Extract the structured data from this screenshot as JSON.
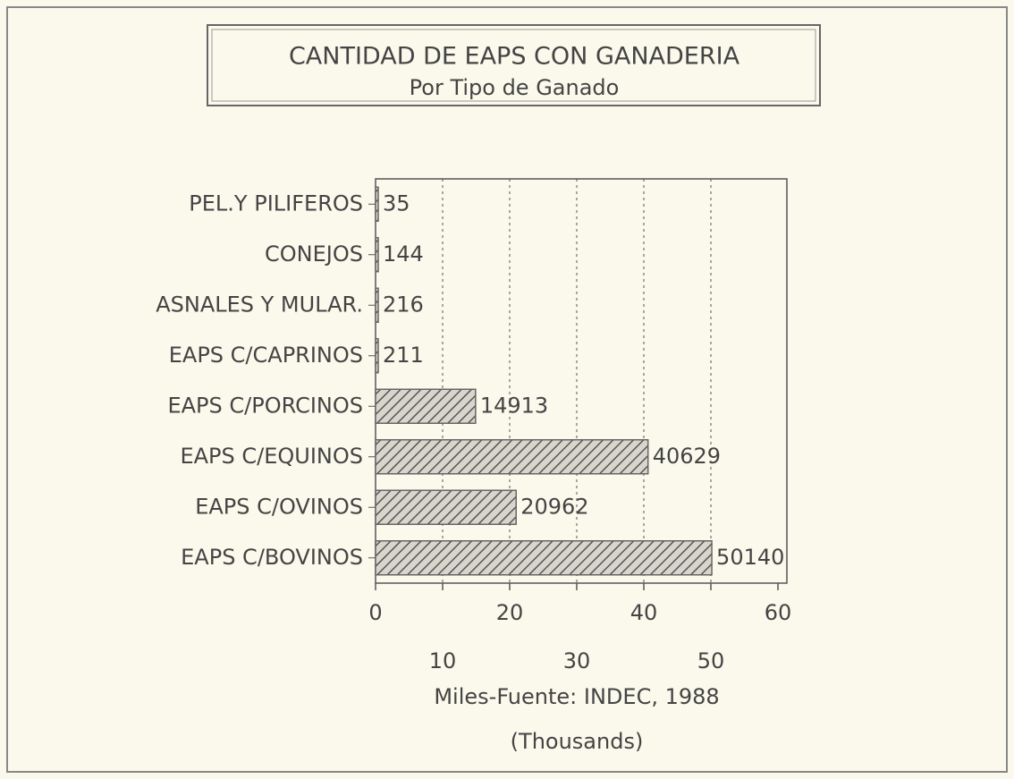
{
  "chart_data": {
    "type": "barh",
    "title": "CANTIDAD DE EAPS CON GANADERIA",
    "subtitle": "Por Tipo de Ganado",
    "xlabel": [
      "Miles-Fuente: INDEC, 1988",
      "(Thousands)"
    ],
    "categories": [
      "PEL.Y PILIFEROS",
      "CONEJOS",
      "ASNALES Y MULAR.",
      "EAPS C/CAPRINOS",
      "EAPS C/PORCINOS",
      "EAPS C/EQUINOS",
      "EAPS C/OVINOS",
      "EAPS C/BOVINOS"
    ],
    "values": [
      0.035,
      0.144,
      0.216,
      0.211,
      14.913,
      40.629,
      20.962,
      50.14
    ],
    "value_labels": [
      "35",
      "144",
      "216",
      "211",
      "14913",
      "40629",
      "20962",
      "50140"
    ],
    "color": "#8a8a8a",
    "xlim": [
      0,
      60
    ],
    "xticks": [
      0,
      10,
      20,
      30,
      40,
      50,
      60
    ],
    "grid": true
  }
}
